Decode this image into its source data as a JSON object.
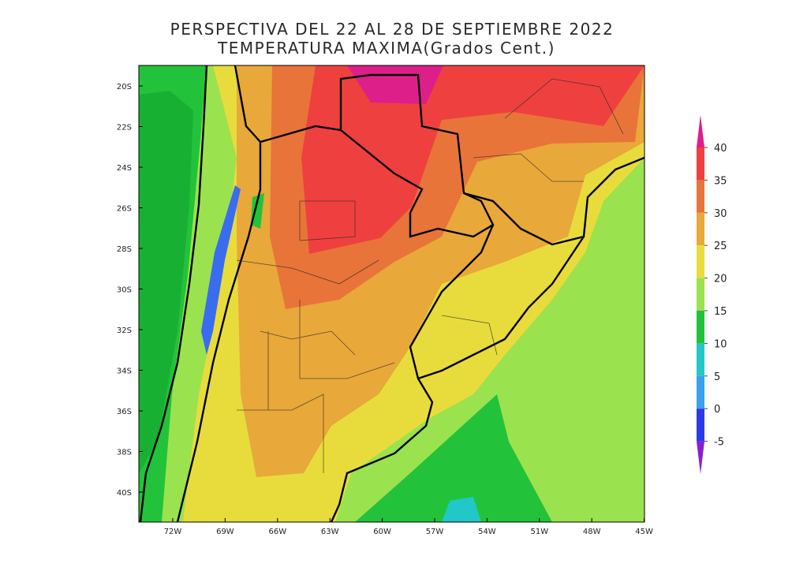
{
  "title": [
    "PERSPECTIVA DEL 22 AL 28 DE SEPTIEMBRE 2022",
    "TEMPERATURA MAXIMA(Grados Cent.)"
  ],
  "map": {
    "lat_labels": [
      "20S",
      "22S",
      "24S",
      "26S",
      "28S",
      "30S",
      "32S",
      "34S",
      "36S",
      "38S",
      "40S"
    ],
    "lon_labels": [
      "72W",
      "69W",
      "66W",
      "63W",
      "60W",
      "57W",
      "54W",
      "51W",
      "48W",
      "45W"
    ]
  },
  "colorbar": {
    "ticks": [
      40,
      35,
      30,
      25,
      20,
      15,
      10,
      5,
      0,
      -5
    ],
    "colors": [
      "#dd1f8a",
      "#ef4040",
      "#e8743a",
      "#e8a83a",
      "#e8dc3c",
      "#9be24f",
      "#22c33a",
      "#22c7c7",
      "#3aa0f0",
      "#2a3ae8",
      "#8a1fd0"
    ]
  }
}
